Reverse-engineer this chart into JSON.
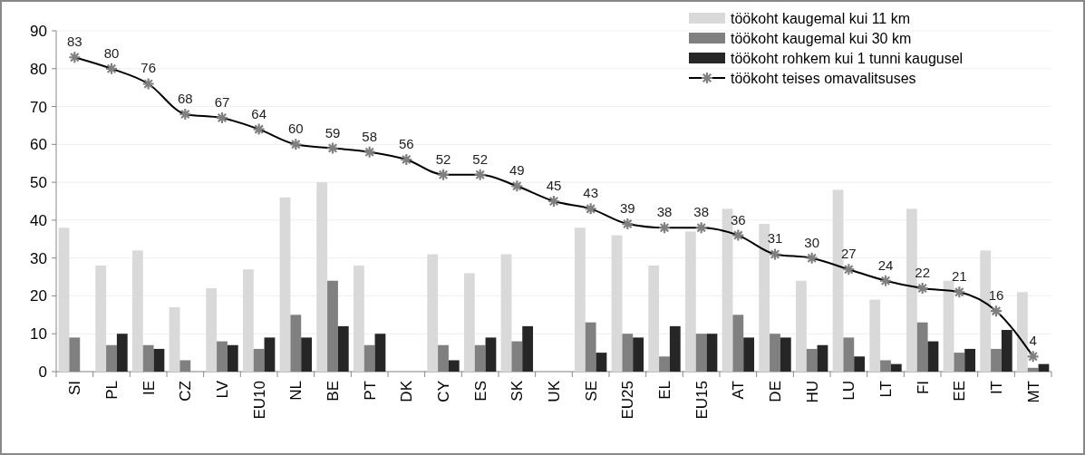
{
  "chart_data": {
    "type": "bar",
    "categories": [
      "SI",
      "PL",
      "IE",
      "CZ",
      "LV",
      "EU10",
      "NL",
      "BE",
      "PT",
      "DK",
      "CY",
      "ES",
      "SK",
      "UK",
      "SE",
      "EU25",
      "EL",
      "EU15",
      "AT",
      "DE",
      "HU",
      "LU",
      "LT",
      "FI",
      "EE",
      "IT",
      "MT"
    ],
    "series": [
      {
        "name": "töökoht kaugemal kui 11 km",
        "color": "#d9d9d9",
        "values": [
          38,
          28,
          32,
          17,
          22,
          27,
          46,
          50,
          28,
          null,
          31,
          26,
          31,
          null,
          38,
          36,
          28,
          37,
          43,
          39,
          24,
          48,
          19,
          43,
          24,
          32,
          21
        ]
      },
      {
        "name": "töökoht kaugemal kui 30 km",
        "color": "#808080",
        "values": [
          9,
          7,
          7,
          3,
          8,
          6,
          15,
          24,
          7,
          null,
          7,
          7,
          8,
          null,
          13,
          10,
          4,
          10,
          15,
          10,
          6,
          9,
          3,
          13,
          5,
          6,
          1
        ]
      },
      {
        "name": "töökoht rohkem kui 1 tunni kaugusel",
        "color": "#262626",
        "values": [
          null,
          10,
          6,
          null,
          7,
          9,
          9,
          12,
          10,
          null,
          3,
          9,
          12,
          null,
          5,
          9,
          12,
          10,
          9,
          9,
          7,
          4,
          2,
          8,
          6,
          11,
          2
        ]
      },
      {
        "name": "töökoht teises omavalitsuses",
        "type": "line",
        "color": "#000000",
        "marker": "cross",
        "values": [
          83,
          80,
          76,
          68,
          67,
          64,
          60,
          59,
          58,
          56,
          52,
          52,
          49,
          45,
          43,
          39,
          38,
          38,
          36,
          31,
          30,
          27,
          24,
          22,
          21,
          16,
          4
        ],
        "value_labels": [
          "83",
          "80",
          "76",
          "68",
          "67",
          "64",
          "60",
          "59",
          "58",
          "56",
          "52",
          "52",
          "49",
          "45",
          "43",
          "39",
          "38",
          "38",
          "36",
          "31",
          "30",
          "27",
          "24",
          "22",
          "21",
          "16",
          "4"
        ]
      }
    ],
    "ylim": [
      0,
      90
    ],
    "yticks": [
      0,
      10,
      20,
      30,
      40,
      50,
      60,
      70,
      80,
      90
    ],
    "grid": "y",
    "legend": "top right"
  }
}
